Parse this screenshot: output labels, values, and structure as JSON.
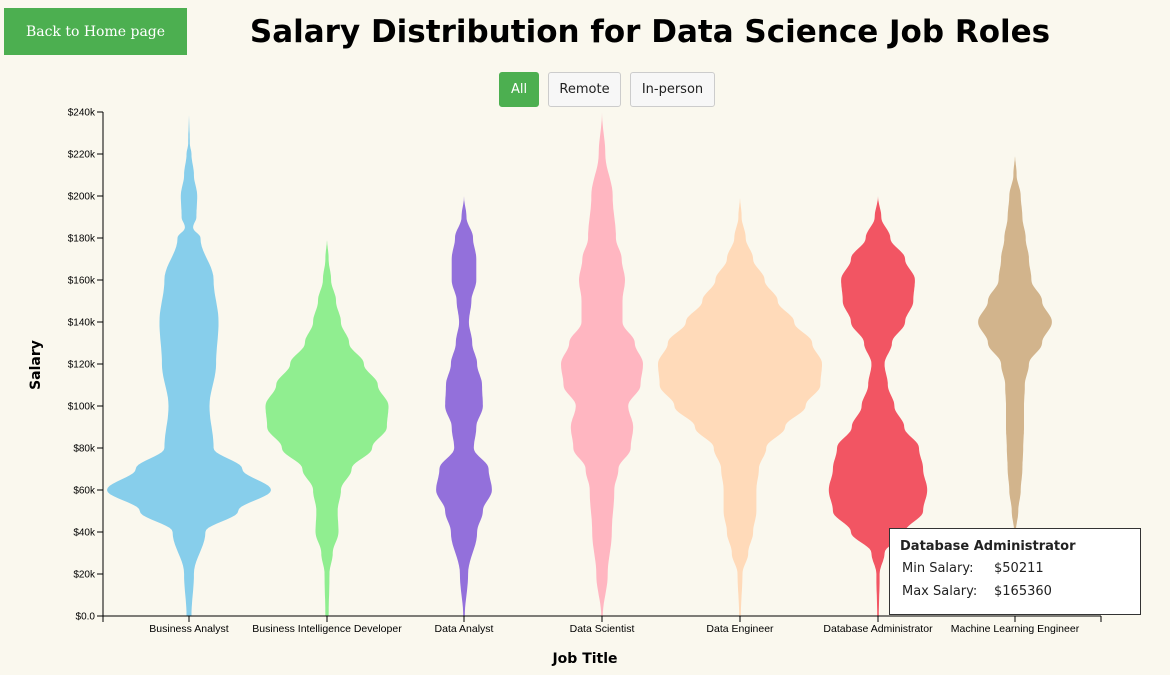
{
  "nav": {
    "back_label": "Back to Home page"
  },
  "page_title": "Salary Distribution for Data Science Job Roles",
  "filters": {
    "active": "All",
    "options": [
      "All",
      "Remote",
      "In-person"
    ]
  },
  "tooltip": {
    "title": "Database Administrator",
    "min_label": "Min Salary:",
    "min_value": "$50211",
    "max_label": "Max Salary:",
    "max_value": "$165360"
  },
  "colors": {
    "button_green": "#4caf50",
    "background": "#faf8ee"
  },
  "chart_data": {
    "type": "violin",
    "xlabel": "Job Title",
    "ylabel": "Salary",
    "ylim": [
      0,
      240000
    ],
    "y_ticks": [
      0,
      20000,
      40000,
      60000,
      80000,
      100000,
      120000,
      140000,
      160000,
      180000,
      200000,
      220000,
      240000
    ],
    "y_tick_labels": [
      "$0.0",
      "$20k",
      "$40k",
      "$60k",
      "$80k",
      "$100k",
      "$120k",
      "$140k",
      "$160k",
      "$180k",
      "$200k",
      "$220k",
      "$240k"
    ],
    "categories": [
      "Business Analyst",
      "Business Intelligence Developer",
      "Data Analyst",
      "Data Scientist",
      "Data Engineer",
      "Database Administrator",
      "Machine Learning Engineer"
    ],
    "series": [
      {
        "category": "Business Analyst",
        "color": "#87ceeb",
        "salary": [
          0,
          20000,
          40000,
          50000,
          60000,
          70000,
          80000,
          100000,
          120000,
          140000,
          160000,
          180000,
          185000,
          190000,
          200000,
          210000,
          220000,
          225000,
          240000
        ],
        "density": [
          0.03,
          0.06,
          0.2,
          0.6,
          1.0,
          0.65,
          0.3,
          0.25,
          0.33,
          0.36,
          0.3,
          0.14,
          0.05,
          0.09,
          0.1,
          0.06,
          0.03,
          0.01,
          0.0
        ]
      },
      {
        "category": "Business Intelligence Developer",
        "color": "#90ee90",
        "salary": [
          0,
          20000,
          30000,
          40000,
          50000,
          60000,
          70000,
          80000,
          90000,
          100000,
          110000,
          120000,
          130000,
          140000,
          150000,
          160000,
          170000,
          180000
        ],
        "density": [
          0.02,
          0.03,
          0.07,
          0.14,
          0.13,
          0.17,
          0.3,
          0.55,
          0.73,
          0.75,
          0.62,
          0.45,
          0.27,
          0.17,
          0.11,
          0.05,
          0.02,
          0.0
        ]
      },
      {
        "category": "Data Analyst",
        "color": "#9370db",
        "salary": [
          0,
          20000,
          40000,
          50000,
          60000,
          70000,
          80000,
          90000,
          100000,
          110000,
          120000,
          130000,
          140000,
          150000,
          160000,
          170000,
          180000,
          190000,
          200000
        ],
        "density": [
          0.01,
          0.05,
          0.16,
          0.23,
          0.34,
          0.3,
          0.12,
          0.15,
          0.23,
          0.22,
          0.16,
          0.1,
          0.06,
          0.09,
          0.15,
          0.15,
          0.11,
          0.03,
          0.0
        ]
      },
      {
        "category": "Data Scientist",
        "color": "#ffb6c1",
        "salary": [
          0,
          20000,
          40000,
          60000,
          70000,
          80000,
          90000,
          100000,
          110000,
          120000,
          130000,
          140000,
          150000,
          160000,
          170000,
          180000,
          200000,
          220000,
          240000
        ],
        "density": [
          0.01,
          0.07,
          0.12,
          0.15,
          0.2,
          0.35,
          0.38,
          0.32,
          0.47,
          0.5,
          0.4,
          0.25,
          0.25,
          0.28,
          0.24,
          0.17,
          0.13,
          0.04,
          0.0
        ]
      },
      {
        "category": "Data Engineer",
        "color": "#ffdab9",
        "salary": [
          0,
          20000,
          30000,
          40000,
          50000,
          60000,
          70000,
          80000,
          90000,
          100000,
          110000,
          120000,
          130000,
          140000,
          150000,
          160000,
          170000,
          180000,
          190000,
          200000
        ],
        "density": [
          0.01,
          0.03,
          0.1,
          0.16,
          0.2,
          0.2,
          0.23,
          0.32,
          0.55,
          0.8,
          0.98,
          1.0,
          0.88,
          0.66,
          0.46,
          0.3,
          0.16,
          0.07,
          0.02,
          0.0
        ]
      },
      {
        "category": "Database Administrator",
        "color": "#f25563",
        "salary": [
          0,
          20000,
          30000,
          40000,
          50000,
          60000,
          70000,
          80000,
          90000,
          100000,
          110000,
          120000,
          130000,
          140000,
          150000,
          160000,
          170000,
          180000,
          190000,
          200000
        ],
        "density": [
          0.01,
          0.02,
          0.08,
          0.33,
          0.55,
          0.6,
          0.55,
          0.5,
          0.32,
          0.2,
          0.12,
          0.08,
          0.17,
          0.33,
          0.43,
          0.45,
          0.33,
          0.15,
          0.04,
          0.0
        ]
      },
      {
        "category": "Machine Learning Engineer",
        "color": "#d2b48c",
        "salary": [
          40000,
          50000,
          60000,
          70000,
          80000,
          90000,
          100000,
          110000,
          120000,
          130000,
          140000,
          150000,
          160000,
          170000,
          180000,
          190000,
          200000,
          210000,
          220000
        ],
        "density": [
          0.01,
          0.04,
          0.07,
          0.09,
          0.1,
          0.11,
          0.11,
          0.12,
          0.17,
          0.33,
          0.45,
          0.33,
          0.2,
          0.17,
          0.13,
          0.09,
          0.07,
          0.02,
          0.0
        ]
      }
    ]
  }
}
